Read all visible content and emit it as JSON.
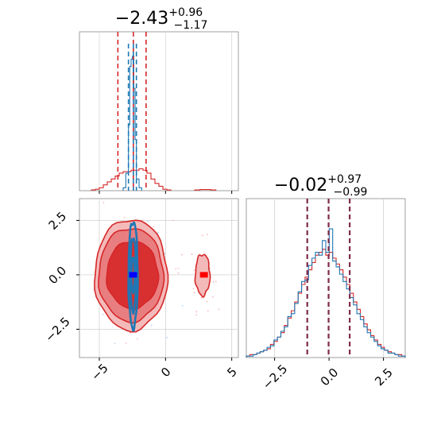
{
  "chart_data": [
    {
      "type": "histogram",
      "panel": "marginal-x",
      "title_main": "−2.43",
      "title_sup": "+0.96",
      "title_sub": "−1.17",
      "xlim": [
        -6.5,
        5.5
      ],
      "ylim": [
        0,
        1
      ],
      "grid": true,
      "x_ticks": [
        -5,
        0,
        5
      ],
      "quantile_lines": {
        "blue": [
          -2.8,
          -2.43,
          -2.2
        ],
        "red": [
          -3.6,
          -2.43,
          -1.47
        ]
      },
      "series": [
        {
          "color": "#d62728",
          "bin_edges": [
            -5.6,
            -5.3,
            -5.0,
            -4.7,
            -4.4,
            -4.1,
            -3.8,
            -3.5,
            -3.2,
            -2.9,
            -2.6,
            -2.3,
            -2.0,
            -1.7,
            -1.4,
            -1.1,
            -0.8,
            -0.5,
            -0.2,
            0.1,
            0.4
          ],
          "heights": [
            0.005,
            0.01,
            0.02,
            0.04,
            0.06,
            0.08,
            0.1,
            0.12,
            0.13,
            0.13,
            0.14,
            0.14,
            0.15,
            0.14,
            0.12,
            0.08,
            0.05,
            0.03,
            0.01,
            0.005
          ]
        },
        {
          "color": "#d62728",
          "bin_edges": [
            2.2,
            2.6,
            3.0,
            3.4,
            3.8
          ],
          "heights": [
            0.005,
            0.008,
            0.008,
            0.005
          ]
        },
        {
          "color": "#1f77b4",
          "bin_edges": [
            -3.2,
            -3.0,
            -2.8,
            -2.7,
            -2.6,
            -2.5,
            -2.4,
            -2.3,
            -2.2,
            -2.0,
            -1.8
          ],
          "heights": [
            0.02,
            0.12,
            0.45,
            0.85,
            0.9,
            0.92,
            0.7,
            0.35,
            0.08,
            0.02
          ]
        }
      ]
    },
    {
      "type": "contour",
      "panel": "joint",
      "xlim": [
        -6.5,
        5.5
      ],
      "ylim": [
        -3.8,
        3.5
      ],
      "grid": true,
      "x_ticks": [
        -5,
        0,
        5
      ],
      "y_ticks": [
        -2.5,
        0.0,
        2.5
      ],
      "x_tick_labels": [
        "−5",
        "0",
        "5"
      ],
      "y_tick_labels": [
        "−2.5",
        "0.0",
        "2.5"
      ],
      "red_contours": [
        {
          "cx": -2.6,
          "cy": 0.0,
          "rx": 2.75,
          "ry": 2.55,
          "fill_opacity": 0.5
        },
        {
          "cx": -2.6,
          "cy": 0.0,
          "rx": 2.45,
          "ry": 2.15,
          "fill_opacity": 0.65
        },
        {
          "cx": -2.5,
          "cy": 0.0,
          "rx": 1.95,
          "ry": 1.55,
          "fill_opacity": 0.85
        }
      ],
      "red_satellite": {
        "cx": 2.8,
        "cy": 0.0,
        "rx": 0.55,
        "ry": 0.95
      },
      "blue_contours": [
        {
          "cx": -2.45,
          "cy": 0.0,
          "rx": 0.35,
          "ry": 2.45
        },
        {
          "cx": -2.45,
          "cy": 0.0,
          "rx": 0.22,
          "ry": 1.7
        },
        {
          "cx": -2.45,
          "cy": 0.0,
          "rx": 0.12,
          "ry": 0.8
        }
      ],
      "peak_markers": [
        {
          "x": -2.45,
          "y": 0.0,
          "color": "#0000ff"
        },
        {
          "x": 2.9,
          "y": 0.0,
          "color": "#ff0000"
        }
      ]
    },
    {
      "type": "histogram",
      "panel": "marginal-y",
      "title_main": "−0.02",
      "title_sup": "+0.97",
      "title_sub": "−0.99",
      "xlim": [
        -3.8,
        3.5
      ],
      "ylim": [
        0,
        1
      ],
      "grid": true,
      "x_ticks": [
        -2.5,
        0.0,
        2.5
      ],
      "x_tick_labels": [
        "−2.5",
        "0.0",
        "2.5"
      ],
      "quantile_lines": [
        -1.0,
        -0.02,
        0.95
      ],
      "series": [
        {
          "color": "#d62728",
          "heights": [
            0.01,
            0.02,
            0.02,
            0.03,
            0.04,
            0.05,
            0.06,
            0.09,
            0.11,
            0.14,
            0.17,
            0.22,
            0.27,
            0.32,
            0.38,
            0.44,
            0.5,
            0.55,
            0.6,
            0.65,
            0.7,
            0.72,
            0.74,
            0.7,
            0.72,
            0.68,
            0.64,
            0.6,
            0.55,
            0.5,
            0.44,
            0.38,
            0.33,
            0.28,
            0.23,
            0.19,
            0.15,
            0.12,
            0.09,
            0.07,
            0.05,
            0.04,
            0.03,
            0.02,
            0.02,
            0.01
          ]
        },
        {
          "color": "#1f77b4",
          "heights": [
            0.01,
            0.01,
            0.02,
            0.03,
            0.04,
            0.05,
            0.07,
            0.08,
            0.12,
            0.14,
            0.18,
            0.21,
            0.28,
            0.3,
            0.37,
            0.45,
            0.52,
            0.53,
            0.63,
            0.68,
            0.72,
            0.7,
            0.8,
            0.72,
            0.88,
            0.66,
            0.62,
            0.57,
            0.52,
            0.47,
            0.41,
            0.36,
            0.3,
            0.26,
            0.21,
            0.17,
            0.14,
            0.11,
            0.08,
            0.06,
            0.05,
            0.03,
            0.03,
            0.02,
            0.01,
            0.01
          ]
        }
      ]
    }
  ]
}
